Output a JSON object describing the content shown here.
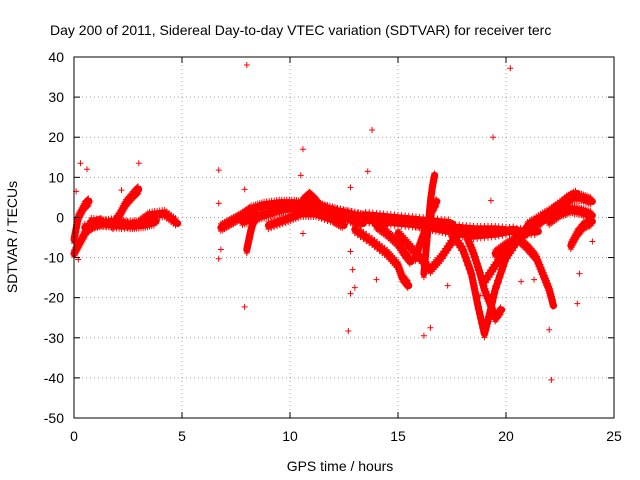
{
  "chart_data": {
    "type": "scatter",
    "title": "Day 200 of 2011, Sidereal Day-to-day VTEC variation (SDTVAR) for receiver terc",
    "xlabel": "GPS time / hours",
    "ylabel": "SDTVAR / TECUs",
    "xlim": [
      0,
      25
    ],
    "ylim": [
      -50,
      40
    ],
    "xticks": [
      0,
      5,
      10,
      15,
      20,
      25
    ],
    "yticks": [
      -50,
      -40,
      -30,
      -20,
      -10,
      0,
      10,
      20,
      30,
      40
    ],
    "grid": true,
    "marker": "+",
    "series_color": "#ff0000",
    "outlier_points": [
      [
        8.0,
        38.0
      ],
      [
        20.2,
        37.2
      ],
      [
        13.8,
        21.8
      ],
      [
        19.4,
        20.0
      ],
      [
        10.6,
        17.0
      ],
      [
        0.3,
        13.5
      ],
      [
        3.0,
        13.5
      ],
      [
        0.6,
        12.0
      ],
      [
        6.7,
        11.8
      ],
      [
        13.6,
        11.5
      ],
      [
        10.5,
        10.5
      ],
      [
        12.8,
        7.5
      ],
      [
        7.9,
        7.0
      ],
      [
        2.2,
        6.8
      ],
      [
        0.1,
        6.5
      ],
      [
        19.3,
        4.2
      ],
      [
        6.7,
        3.5
      ],
      [
        10.6,
        -4.0
      ],
      [
        12.8,
        -8.5
      ],
      [
        6.8,
        -8.0
      ],
      [
        6.7,
        -10.3
      ],
      [
        0.2,
        -10.5
      ],
      [
        12.9,
        -13.0
      ],
      [
        14.0,
        -15.5
      ],
      [
        13.0,
        -17.5
      ],
      [
        19.8,
        -12.5
      ],
      [
        17.3,
        -17.0
      ],
      [
        12.8,
        -19.0
      ],
      [
        18.8,
        -19.5
      ],
      [
        7.9,
        -22.3
      ],
      [
        12.7,
        -28.3
      ],
      [
        22.0,
        -28.0
      ],
      [
        16.5,
        -27.5
      ],
      [
        16.2,
        -29.5
      ],
      [
        23.3,
        -21.5
      ],
      [
        22.1,
        -40.5
      ],
      [
        21.3,
        -15.5
      ],
      [
        24.0,
        -6.0
      ],
      [
        23.4,
        -14.0
      ],
      [
        20.7,
        -16.0
      ]
    ],
    "tracks": [
      {
        "name": "arc-00",
        "x": [
          0.0,
          0.2,
          0.5,
          0.7
        ],
        "y": [
          -5.5,
          0.0,
          3.0,
          4.0
        ]
      },
      {
        "name": "arc-01",
        "x": [
          0.0,
          0.3,
          0.6,
          1.0,
          1.3
        ],
        "y": [
          -9.0,
          -6.0,
          -3.0,
          -1.5,
          -1.0
        ]
      },
      {
        "name": "arc-02",
        "x": [
          0.8,
          1.5,
          2.2,
          3.0,
          3.5,
          4.2,
          4.8
        ],
        "y": [
          -1.0,
          -1.5,
          -2.0,
          -1.5,
          0.5,
          1.0,
          -1.5
        ]
      },
      {
        "name": "arc-03",
        "x": [
          1.8,
          2.1,
          2.4,
          2.8,
          3.0
        ],
        "y": [
          -2.0,
          0.5,
          3.5,
          6.0,
          7.0
        ]
      },
      {
        "name": "arc-04",
        "x": [
          0.5,
          1.2,
          2.0,
          2.6,
          3.2,
          3.8
        ],
        "y": [
          -2.5,
          -1.5,
          -1.0,
          -2.0,
          -1.8,
          -1.0
        ]
      },
      {
        "name": "arc-05",
        "x": [
          6.8,
          7.3,
          7.8,
          8.2,
          8.8,
          9.5,
          10.2,
          10.8,
          11.5,
          12.2,
          13.0,
          14.0
        ],
        "y": [
          -2.5,
          -1.0,
          0.5,
          2.0,
          3.0,
          3.5,
          3.5,
          3.0,
          2.5,
          1.5,
          0.5,
          -0.5
        ]
      },
      {
        "name": "arc-06",
        "x": [
          7.8,
          8.4,
          9.0,
          9.6,
          10.2,
          10.8,
          11.5,
          12.0,
          12.8,
          13.4
        ],
        "y": [
          -1.0,
          0.0,
          1.0,
          2.0,
          2.5,
          3.0,
          2.5,
          1.0,
          -0.5,
          -1.5
        ]
      },
      {
        "name": "arc-07",
        "x": [
          8.0,
          8.1,
          8.2,
          8.3,
          8.5
        ],
        "y": [
          -8.0,
          -5.5,
          -3.0,
          -1.0,
          0.5
        ]
      },
      {
        "name": "arc-08",
        "x": [
          9.0,
          9.8,
          10.5,
          11.2,
          12.0,
          12.5
        ],
        "y": [
          -2.0,
          -0.5,
          1.0,
          1.0,
          -0.5,
          -2.0
        ]
      },
      {
        "name": "arc-09",
        "x": [
          10.3,
          10.6,
          10.9,
          11.2,
          11.5
        ],
        "y": [
          1.0,
          4.0,
          5.5,
          4.0,
          2.0
        ]
      },
      {
        "name": "arc-10",
        "x": [
          12.5,
          13.5,
          14.5,
          15.5,
          16.5,
          17.5,
          18.5,
          19.5,
          20.5,
          21.5
        ],
        "y": [
          0.0,
          -0.5,
          -1.0,
          -1.5,
          -2.0,
          -2.5,
          -3.0,
          -3.0,
          -3.5,
          -3.5
        ]
      },
      {
        "name": "arc-11",
        "x": [
          13.0,
          13.8,
          14.5,
          15.0,
          15.2,
          15.5
        ],
        "y": [
          -3.0,
          -6.0,
          -9.0,
          -12.0,
          -15.0,
          -17.0
        ]
      },
      {
        "name": "arc-12",
        "x": [
          14.0,
          14.5,
          15.0,
          15.3,
          15.6
        ],
        "y": [
          -2.0,
          -4.0,
          -6.5,
          -9.0,
          -11.0
        ]
      },
      {
        "name": "arc-13",
        "x": [
          15.0,
          15.5,
          16.0,
          16.5,
          17.0,
          17.5,
          18.0
        ],
        "y": [
          -4.0,
          -7.0,
          -10.0,
          -13.0,
          -10.0,
          -6.0,
          -3.0
        ]
      },
      {
        "name": "arc-14",
        "x": [
          15.8,
          16.0,
          16.2,
          16.4,
          16.6,
          16.8
        ],
        "y": [
          -10.0,
          -7.0,
          -4.0,
          -1.0,
          2.0,
          4.0
        ]
      },
      {
        "name": "arc-15",
        "x": [
          16.2,
          16.3,
          16.4,
          16.5,
          16.6,
          16.7
        ],
        "y": [
          -14.0,
          -8.0,
          -2.0,
          4.0,
          8.0,
          10.5
        ]
      },
      {
        "name": "arc-16",
        "x": [
          15.8,
          16.6,
          17.5,
          18.5,
          19.5,
          20.5
        ],
        "y": [
          -1.5,
          -2.5,
          -3.5,
          -4.5,
          -4.0,
          -3.0
        ]
      },
      {
        "name": "arc-17",
        "x": [
          17.5,
          18.0,
          18.4,
          18.7,
          19.0,
          19.2,
          19.5,
          20.0,
          20.5,
          21.0,
          21.5,
          22.0
        ],
        "y": [
          -4.0,
          -8.0,
          -14.0,
          -22.0,
          -29.0,
          -25.0,
          -18.0,
          -10.0,
          -6.0,
          -2.5,
          -1.0,
          0.5
        ]
      },
      {
        "name": "arc-18",
        "x": [
          18.2,
          18.5,
          18.8,
          19.0,
          19.3,
          19.5,
          19.8
        ],
        "y": [
          -5.0,
          -9.0,
          -14.0,
          -18.0,
          -22.0,
          -25.0,
          -23.0
        ]
      },
      {
        "name": "arc-19",
        "x": [
          19.0,
          19.5,
          20.0,
          20.5,
          21.0,
          21.5,
          22.0,
          22.5
        ],
        "y": [
          -16.0,
          -12.0,
          -8.0,
          -5.0,
          -3.0,
          -1.0,
          1.0,
          3.0
        ]
      },
      {
        "name": "arc-20",
        "x": [
          19.5,
          20.0,
          20.5,
          21.0,
          21.5,
          22.0,
          22.5,
          23.0
        ],
        "y": [
          -9.0,
          -7.0,
          -5.5,
          -3.5,
          -1.5,
          1.0,
          3.0,
          4.5
        ]
      },
      {
        "name": "arc-21",
        "x": [
          20.5,
          21.0,
          21.4,
          21.7,
          22.0,
          22.2
        ],
        "y": [
          -5.0,
          -7.5,
          -10.0,
          -14.0,
          -18.0,
          -22.0
        ]
      },
      {
        "name": "arc-22",
        "x": [
          22.0,
          22.5,
          23.0,
          23.5,
          24.0
        ],
        "y": [
          0.0,
          3.0,
          5.0,
          5.0,
          4.0
        ]
      },
      {
        "name": "arc-23",
        "x": [
          22.0,
          22.5,
          23.0,
          23.5,
          24.0
        ],
        "y": [
          -1.0,
          1.0,
          2.0,
          1.5,
          0.5
        ]
      },
      {
        "name": "arc-24",
        "x": [
          23.0,
          23.3,
          23.6,
          24.0
        ],
        "y": [
          -7.0,
          -4.0,
          -2.0,
          -1.0
        ]
      },
      {
        "name": "arc-25",
        "x": [
          21.0,
          21.6,
          22.2,
          22.8,
          23.3
        ],
        "y": [
          -2.0,
          0.0,
          2.0,
          4.5,
          6.0
        ]
      },
      {
        "name": "arc-26",
        "x": [
          13.5,
          14.5,
          15.5,
          16.5,
          17.5
        ],
        "y": [
          0.5,
          0.0,
          -0.5,
          -1.0,
          -1.5
        ]
      },
      {
        "name": "arc-27",
        "x": [
          11.0,
          12.0,
          13.0,
          13.8,
          14.5
        ],
        "y": [
          2.0,
          1.5,
          0.5,
          -0.5,
          -1.5
        ]
      }
    ]
  }
}
